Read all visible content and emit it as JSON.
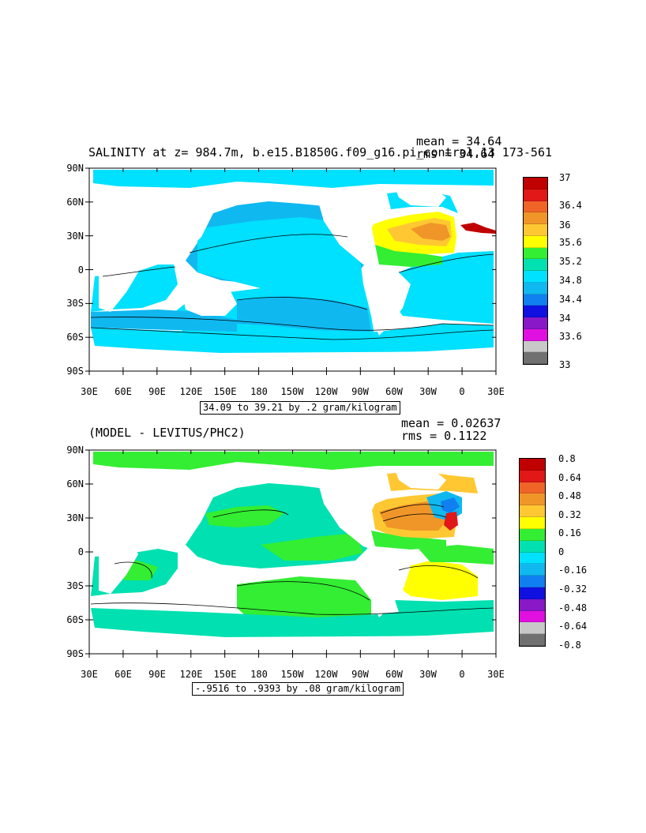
{
  "panel1": {
    "title": "SALINITY at z= 984.7m, b.e15.B1850G.f09_g16.pi_control.13 173-561",
    "mean_label": "mean = 34.64",
    "rms_label": "rms = 34.64",
    "range_label": "34.09 to 39.21 by .2 gram/kilogram",
    "colorbar_labels": [
      "37",
      "36.4",
      "36",
      "35.6",
      "35.2",
      "34.8",
      "34.4",
      "34",
      "33.6",
      "33"
    ]
  },
  "panel2": {
    "title": "(MODEL - LEVITUS/PHC2)",
    "mean_label": "mean = 0.02637",
    "rms_label": "rms = 0.1122",
    "range_label": "-.9516 to .9393 by .08 gram/kilogram",
    "colorbar_labels": [
      "0.8",
      "0.64",
      "0.48",
      "0.32",
      "0.16",
      "0",
      "-0.16",
      "-0.32",
      "-0.48",
      "-0.64",
      "-0.8"
    ]
  },
  "axes": {
    "y_labels": [
      "90N",
      "60N",
      "30N",
      "0",
      "30S",
      "60S",
      "90S"
    ],
    "x_labels": [
      "30E",
      "60E",
      "90E",
      "120E",
      "150E",
      "180",
      "150W",
      "120W",
      "90W",
      "60W",
      "30W",
      "0",
      "30E"
    ]
  },
  "colors": {
    "panel1_colorbar": [
      "#c00000",
      "#e01818",
      "#f06428",
      "#f09628",
      "#ffc832",
      "#ffff00",
      "#33ee33",
      "#00e0b0",
      "#00e0ff",
      "#10b8f0",
      "#1080f0",
      "#1010e0",
      "#8818c8",
      "#e010e0",
      "#c8c8c8",
      "#707070"
    ],
    "panel2_colorbar": [
      "#c00000",
      "#e01818",
      "#f06428",
      "#f09628",
      "#ffc832",
      "#ffff00",
      "#33ee33",
      "#00e0b0",
      "#00e0ff",
      "#10b8f0",
      "#1080f0",
      "#1010e0",
      "#8818c8",
      "#e010e0",
      "#c8c8c8",
      "#707070"
    ]
  },
  "chart_data": [
    {
      "type": "heatmap",
      "title": "SALINITY at z= 984.7m, b.e15.B1850G.f09_g16.pi_control.13 173-561",
      "units": "gram/kilogram",
      "mean": 34.64,
      "rms": 34.64,
      "field_min": 34.09,
      "field_max": 39.21,
      "contour_interval": 0.2,
      "x_ticks": [
        "30E",
        "60E",
        "90E",
        "120E",
        "150E",
        "180",
        "150W",
        "120W",
        "90W",
        "60W",
        "30W",
        "0",
        "30E"
      ],
      "y_ticks": [
        "90N",
        "60N",
        "30N",
        "0",
        "30S",
        "60S",
        "90S"
      ],
      "colorbar_levels": [
        33,
        33.2,
        33.4,
        33.6,
        33.8,
        34,
        34.2,
        34.4,
        34.6,
        34.8,
        35,
        35.2,
        35.4,
        35.6,
        35.8,
        36,
        36.2,
        36.4,
        36.6,
        36.8,
        37
      ]
    },
    {
      "type": "heatmap",
      "title": "(MODEL - LEVITUS/PHC2)",
      "units": "gram/kilogram",
      "mean": 0.02637,
      "rms": 0.1122,
      "field_min": -0.9516,
      "field_max": 0.9393,
      "contour_interval": 0.08,
      "x_ticks": [
        "30E",
        "60E",
        "90E",
        "120E",
        "150E",
        "180",
        "150W",
        "120W",
        "90W",
        "60W",
        "30W",
        "0",
        "30E"
      ],
      "y_ticks": [
        "90N",
        "60N",
        "30N",
        "0",
        "30S",
        "60S",
        "90S"
      ],
      "colorbar_levels": [
        -0.8,
        -0.72,
        -0.64,
        -0.56,
        -0.48,
        -0.4,
        -0.32,
        -0.24,
        -0.16,
        -0.08,
        0,
        0.08,
        0.16,
        0.24,
        0.32,
        0.4,
        0.48,
        0.56,
        0.64,
        0.72,
        0.8
      ]
    }
  ]
}
